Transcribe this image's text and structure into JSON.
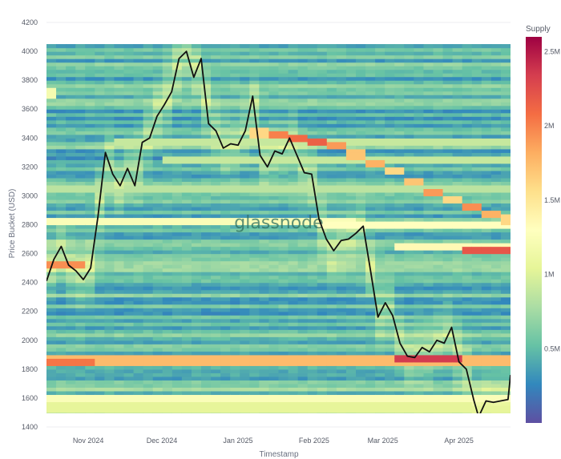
{
  "watermark": "glassnode",
  "chart_data": {
    "type": "heatmap",
    "xlabel": "Timestamp",
    "ylabel": "Price Bucket (USD)",
    "colorbar_title": "Supply",
    "x_ticks": [
      "Nov 2024",
      "Dec 2024",
      "Jan 2025",
      "Feb 2025",
      "Mar 2025",
      "Apr 2025"
    ],
    "x_range": [
      "2024-10-15",
      "2025-04-22"
    ],
    "y_ticks": [
      1400,
      1600,
      1800,
      2000,
      2200,
      2400,
      2600,
      2800,
      3000,
      3200,
      3400,
      3600,
      3800,
      4000,
      4200
    ],
    "ylim": [
      1400,
      4200
    ],
    "bucket_range": [
      1450,
      4050
    ],
    "colorbar": {
      "ticks": [
        "0.5M",
        "1M",
        "1.5M",
        "2M",
        "2.5M"
      ],
      "tick_values": [
        0.5,
        1.0,
        1.5,
        2.0,
        2.5
      ],
      "range": [
        0,
        2.6
      ],
      "colorscale": [
        "#5e4fa2",
        "#3288bd",
        "#66c2a5",
        "#abdda4",
        "#e6f598",
        "#ffffbf",
        "#fee08b",
        "#fdae61",
        "#f46d43",
        "#d53e4f",
        "#9e0142"
      ]
    },
    "heatmap_bands": [
      {
        "start": "2024-10-15",
        "end": "2025-04-22",
        "price": 1860,
        "supply": 1.75
      },
      {
        "start": "2024-10-15",
        "end": "2024-11-03",
        "price": 1850,
        "supply": 2.05
      },
      {
        "start": "2025-03-04",
        "end": "2025-04-03",
        "price": 1870,
        "supply": 2.35
      },
      {
        "start": "2024-10-15",
        "end": "2025-04-22",
        "price": 1600,
        "supply": 1.25
      },
      {
        "start": "2024-10-15",
        "end": "2025-04-22",
        "price": 1540,
        "supply": 1.05
      },
      {
        "start": "2024-10-15",
        "end": "2024-11-01",
        "price": 2520,
        "supply": 1.95
      },
      {
        "start": "2024-10-15",
        "end": "2024-10-20",
        "price": 3710,
        "supply": 1.2
      },
      {
        "start": "2024-10-15",
        "end": "2025-02-17",
        "price": 2820,
        "supply": 1.25
      },
      {
        "start": "2025-02-01",
        "end": "2025-04-22",
        "price": 2800,
        "supply": 1.3
      },
      {
        "start": "2025-03-04",
        "end": "2025-04-22",
        "price": 2650,
        "supply": 1.35
      },
      {
        "start": "2025-04-03",
        "end": "2025-04-22",
        "price": 2620,
        "supply": 2.2
      },
      {
        "start": "2024-10-15",
        "end": "2025-04-22",
        "price": 3050,
        "supply": 0.85
      },
      {
        "start": "2024-11-12",
        "end": "2025-04-22",
        "price": 3380,
        "supply": 0.9
      },
      {
        "start": "2024-12-01",
        "end": "2025-04-22",
        "price": 3250,
        "supply": 0.9
      }
    ],
    "heatmap_diagonal": [
      {
        "date": "2025-01-09",
        "price": 3440,
        "supply": 1.6
      },
      {
        "date": "2025-01-17",
        "price": 3420,
        "supply": 2.0
      },
      {
        "date": "2025-01-25",
        "price": 3400,
        "supply": 2.1
      },
      {
        "date": "2025-02-02",
        "price": 3380,
        "supply": 2.15
      },
      {
        "date": "2025-02-10",
        "price": 3350,
        "supply": 1.9
      },
      {
        "date": "2025-02-18",
        "price": 3290,
        "supply": 1.7
      },
      {
        "date": "2025-02-26",
        "price": 3230,
        "supply": 1.8
      },
      {
        "date": "2025-03-06",
        "price": 3170,
        "supply": 1.6
      },
      {
        "date": "2025-03-14",
        "price": 3100,
        "supply": 1.7
      },
      {
        "date": "2025-03-22",
        "price": 3030,
        "supply": 1.9
      },
      {
        "date": "2025-03-30",
        "price": 2970,
        "supply": 1.6
      },
      {
        "date": "2025-04-07",
        "price": 2920,
        "supply": 1.95
      },
      {
        "date": "2025-04-15",
        "price": 2870,
        "supply": 1.8
      },
      {
        "date": "2025-04-21",
        "price": 2840,
        "supply": 1.6
      }
    ],
    "series": [
      {
        "type": "line",
        "x": [
          "2024-10-15",
          "2024-10-18",
          "2024-10-21",
          "2024-10-24",
          "2024-10-27",
          "2024-10-30",
          "2024-11-02",
          "2024-11-05",
          "2024-11-08",
          "2024-11-11",
          "2024-11-14",
          "2024-11-17",
          "2024-11-20",
          "2024-11-23",
          "2024-11-26",
          "2024-11-29",
          "2024-12-02",
          "2024-12-05",
          "2024-12-08",
          "2024-12-11",
          "2024-12-14",
          "2024-12-17",
          "2024-12-20",
          "2024-12-23",
          "2024-12-26",
          "2024-12-29",
          "2025-01-01",
          "2025-01-04",
          "2025-01-07",
          "2025-01-10",
          "2025-01-13",
          "2025-01-16",
          "2025-01-19",
          "2025-01-22",
          "2025-01-25",
          "2025-01-28",
          "2025-01-31",
          "2025-02-03",
          "2025-02-06",
          "2025-02-09",
          "2025-02-12",
          "2025-02-15",
          "2025-02-18",
          "2025-02-21",
          "2025-02-24",
          "2025-02-27",
          "2025-03-02",
          "2025-03-05",
          "2025-03-08",
          "2025-03-11",
          "2025-03-14",
          "2025-03-17",
          "2025-03-20",
          "2025-03-23",
          "2025-03-26",
          "2025-03-29",
          "2025-04-01",
          "2025-04-04",
          "2025-04-07",
          "2025-04-09",
          "2025-04-12",
          "2025-04-15",
          "2025-04-18",
          "2025-04-21",
          "2025-04-22"
        ],
        "y": [
          2410,
          2560,
          2650,
          2520,
          2480,
          2420,
          2500,
          2860,
          3300,
          3150,
          3070,
          3190,
          3070,
          3370,
          3400,
          3550,
          3630,
          3720,
          3950,
          4000,
          3820,
          3950,
          3500,
          3450,
          3330,
          3360,
          3350,
          3450,
          3690,
          3280,
          3200,
          3310,
          3290,
          3400,
          3280,
          3160,
          3150,
          2840,
          2700,
          2620,
          2690,
          2700,
          2740,
          2790,
          2480,
          2160,
          2260,
          2170,
          1980,
          1890,
          1880,
          1950,
          1920,
          2000,
          1980,
          2090,
          1850,
          1800,
          1590,
          1470,
          1580,
          1570,
          1580,
          1590,
          1760
        ]
      }
    ]
  }
}
